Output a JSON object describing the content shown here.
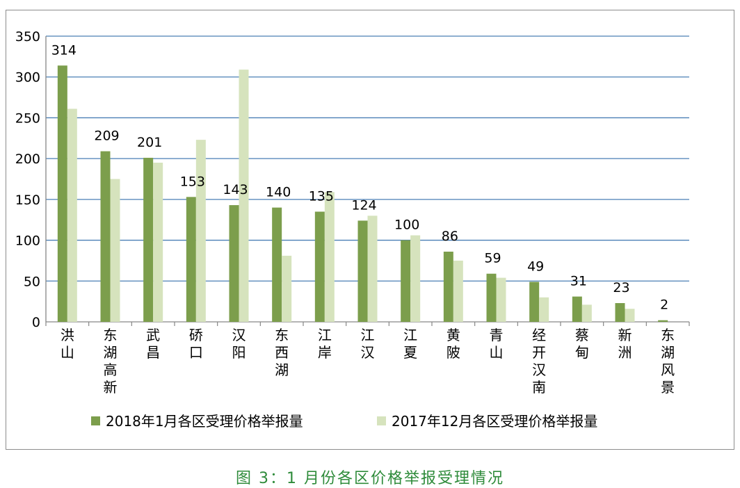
{
  "chart_data": {
    "type": "bar",
    "title": "",
    "xlabel": "",
    "ylabel": "",
    "ylim": [
      0,
      350
    ],
    "yticks": [
      0,
      50,
      100,
      150,
      200,
      250,
      300,
      350
    ],
    "grid": true,
    "legend_position": "bottom",
    "categories": [
      "洪山",
      "东湖高新",
      "武昌",
      "硚口",
      "汉阳",
      "东西湖",
      "江岸",
      "江汉",
      "江夏",
      "黄陂",
      "青山",
      "经开汉南",
      "蔡甸",
      "新洲",
      "东湖风景"
    ],
    "series": [
      {
        "name": "2018年1月各区受理价格举报量",
        "color": "#7c9e4c",
        "values": [
          314,
          209,
          201,
          153,
          143,
          140,
          135,
          124,
          100,
          86,
          59,
          49,
          31,
          23,
          2
        ],
        "data_labels": [
          314,
          209,
          201,
          153,
          143,
          140,
          135,
          124,
          100,
          86,
          59,
          49,
          31,
          23,
          2
        ]
      },
      {
        "name": "2017年12月各区受理价格举报量",
        "color": "#d6e3bd",
        "values": [
          261,
          175,
          195,
          223,
          309,
          81,
          159,
          130,
          106,
          75,
          54,
          30,
          21,
          16,
          0
        ]
      }
    ],
    "gridline_color": "#4a7fb5"
  },
  "caption": "图 3：1 月份各区价格举报受理情况"
}
